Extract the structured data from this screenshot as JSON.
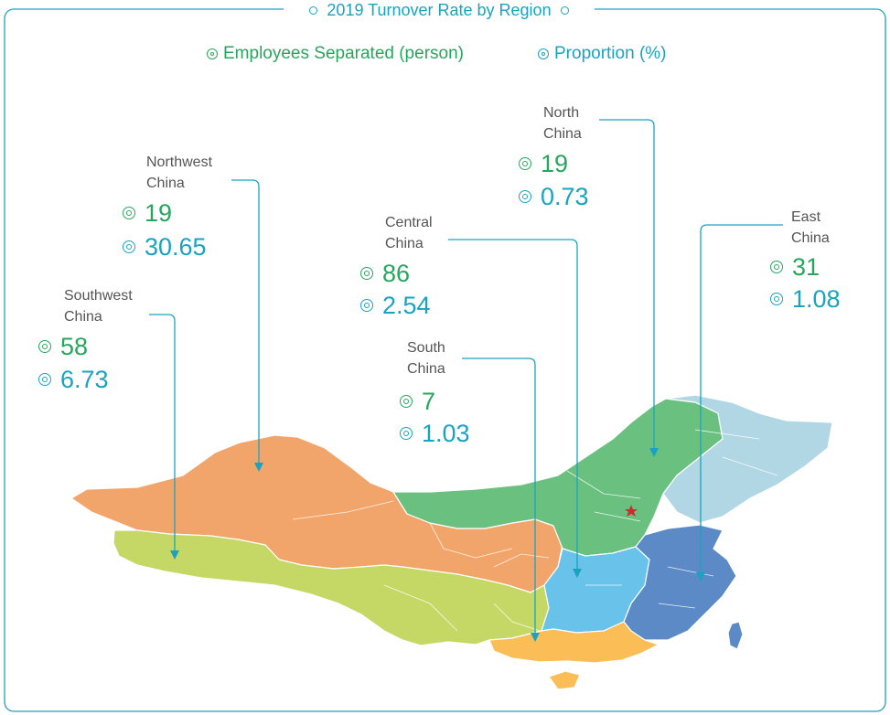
{
  "title": "2019 Turnover Rate by Region",
  "legend": {
    "employees": "Employees Separated (person)",
    "proportion": "Proportion (%)"
  },
  "colors": {
    "frame": "#1aa3c0",
    "green_text": "#27a65e",
    "blue_text": "#1aa3c0",
    "northwest": "#f2a56b",
    "southwest": "#c5d866",
    "north": "#6ac07f",
    "northeast": "#b2d7e4",
    "east": "#5c8ac6",
    "central": "#69c2ea",
    "south": "#fbbd55",
    "capital_star": "#d7262f"
  },
  "regions": {
    "northwest": {
      "name": "Northwest\nChina",
      "employees": "19",
      "proportion": "30.65"
    },
    "southwest": {
      "name": "Southwest\nChina",
      "employees": "58",
      "proportion": "6.73"
    },
    "north": {
      "name": "North\nChina",
      "employees": "19",
      "proportion": "0.73"
    },
    "central": {
      "name": "Central\nChina",
      "employees": "86",
      "proportion": "2.54"
    },
    "south": {
      "name": "South\nChina",
      "employees": "7",
      "proportion": "1.03"
    },
    "east": {
      "name": "East\nChina",
      "employees": "31",
      "proportion": "1.08"
    }
  }
}
